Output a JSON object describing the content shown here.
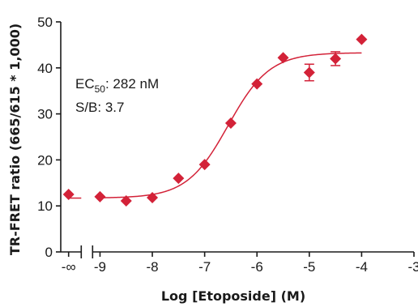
{
  "chart_data": {
    "type": "scatter",
    "title": "",
    "xlabel": "Log [Etoposide] (M)",
    "ylabel": "TR-FRET ratio (665/615 * 1,000)",
    "xlim": [
      -9.75,
      -3
    ],
    "ylim": [
      0,
      50
    ],
    "x_ticks": [
      {
        "value": -9.6,
        "label": "-∞"
      },
      {
        "value": -9,
        "label": "-9"
      },
      {
        "value": -8,
        "label": "-8"
      },
      {
        "value": -7,
        "label": "-7"
      },
      {
        "value": -6,
        "label": "-6"
      },
      {
        "value": -5,
        "label": "-5"
      },
      {
        "value": -4,
        "label": "-4"
      },
      {
        "value": -3,
        "label": "-3"
      }
    ],
    "y_ticks": [
      0,
      10,
      20,
      30,
      40,
      50
    ],
    "axis_break_x": -9.25,
    "grid": false,
    "marker_color": "#d32238",
    "curve_color": "#d32238",
    "baseline_point": {
      "x": "-∞",
      "y": 12.5
    },
    "points": [
      {
        "x": -9.0,
        "y": 12.0,
        "err": 0
      },
      {
        "x": -8.5,
        "y": 11.1,
        "err": 0
      },
      {
        "x": -8.0,
        "y": 11.8,
        "err": 0
      },
      {
        "x": -7.5,
        "y": 16.0,
        "err": 0
      },
      {
        "x": -7.0,
        "y": 19.0,
        "err": 0
      },
      {
        "x": -6.5,
        "y": 28.0,
        "err": 0
      },
      {
        "x": -6.0,
        "y": 36.5,
        "err": 0
      },
      {
        "x": -5.5,
        "y": 42.2,
        "err": 0
      },
      {
        "x": -5.0,
        "y": 39.0,
        "err": 1.8
      },
      {
        "x": -4.5,
        "y": 42.0,
        "err": 1.5
      },
      {
        "x": -4.0,
        "y": 46.2,
        "err": 0
      }
    ],
    "fit": {
      "bottom": 11.7,
      "top": 43.3,
      "log_ec50": -6.55,
      "hill": 1.1,
      "x_start": -9.0,
      "x_end": -4.0
    },
    "annotations": {
      "ec50_prefix": "EC",
      "ec50_sub": "50",
      "ec50_value": ": 282 nM",
      "sb": "S/B: 3.7"
    }
  }
}
